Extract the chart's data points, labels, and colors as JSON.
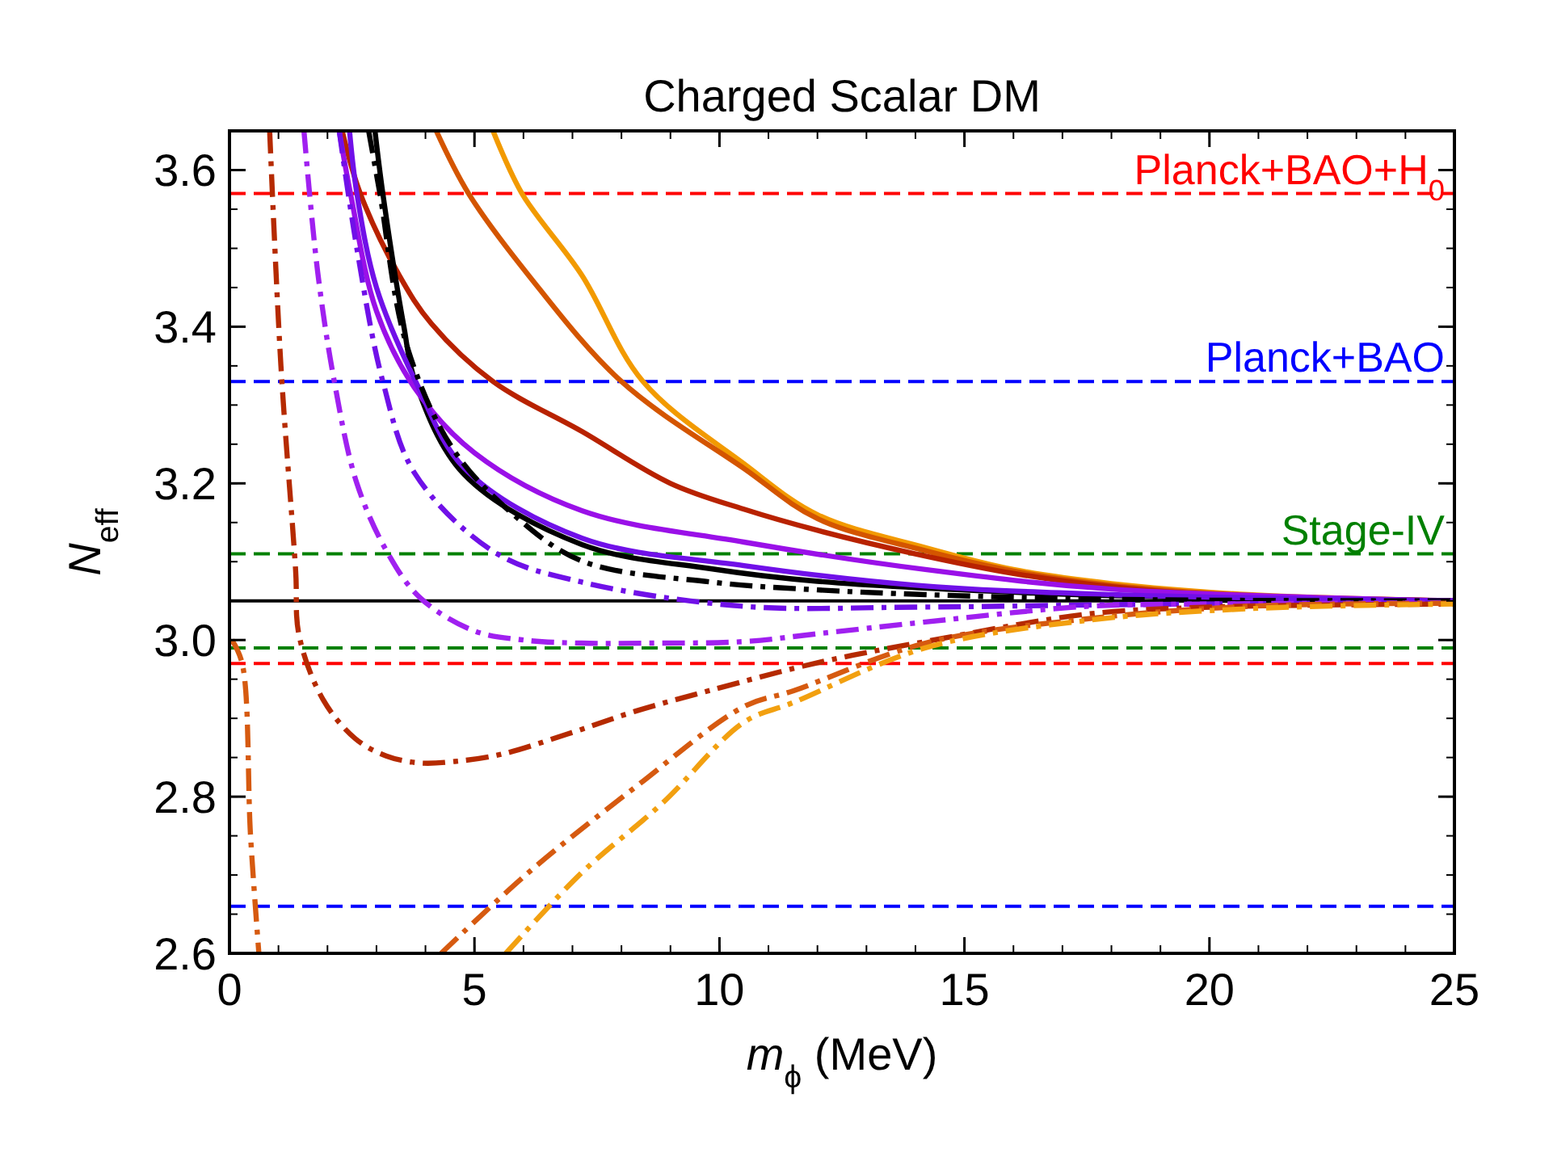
{
  "chart_data": {
    "type": "line",
    "title": "Charged Scalar DM",
    "xlabel": "m$_{ϕ}$ (MeV)",
    "ylabel": "N$_{eff}$",
    "xlim": [
      0,
      25
    ],
    "xticks": [
      0,
      5,
      10,
      15,
      20,
      25
    ],
    "ylim": [
      2.6,
      3.65
    ],
    "yticks": [
      2.6,
      2.8,
      {
        "value": 3,
        "label": "3.0"
      },
      3.2,
      3.4,
      3.6
    ],
    "grid": false,
    "marker": "none",
    "series": [
      {
        "color": "#f29a00",
        "line_style": "solid",
        "x": [
          5.38,
          5.97,
          7.19,
          8.44,
          10.5,
          12,
          14.2,
          16,
          18,
          20.8,
          25
        ],
        "values": [
          3.65,
          3.57,
          3.466,
          3.33,
          3.225,
          3.16,
          3.118,
          3.09,
          3.072,
          3.058,
          3.05
        ]
      },
      {
        "color": "#d45500",
        "line_style": "solid",
        "x": [
          4.22,
          4.88,
          6.1,
          8.0,
          10.5,
          12,
          14.2,
          16,
          18,
          20.8,
          25
        ],
        "values": [
          3.65,
          3.57,
          3.466,
          3.33,
          3.219,
          3.155,
          3.114,
          3.088,
          3.07,
          3.057,
          3.05
        ]
      },
      {
        "color": "#b82200",
        "line_style": "solid",
        "x": [
          2.3,
          2.67,
          3.46,
          4.12,
          5.38,
          7.2,
          9,
          10.5,
          12,
          14,
          16,
          18,
          20,
          25
        ],
        "values": [
          3.65,
          3.57,
          3.466,
          3.404,
          3.33,
          3.266,
          3.2,
          3.167,
          3.14,
          3.11,
          3.085,
          3.068,
          3.058,
          3.05
        ]
      },
      {
        "color": "#000000",
        "line_style": "solid",
        "x": [
          2.97,
          3.13,
          3.56,
          3.79,
          4.78,
          7.19,
          9.83,
          12,
          16.4,
          20,
          25
        ],
        "values": [
          3.65,
          3.57,
          3.4,
          3.33,
          3.212,
          3.122,
          3.091,
          3.075,
          3.06,
          3.054,
          3.05
        ]
      },
      {
        "color": "#9a10e8",
        "line_style": "solid",
        "x": [
          2.24,
          2.47,
          3.0,
          3.8,
          5.0,
          7.2,
          10.5,
          14.2,
          18,
          25
        ],
        "values": [
          3.65,
          3.57,
          3.42,
          3.32,
          3.239,
          3.165,
          3.125,
          3.09,
          3.065,
          3.05
        ]
      },
      {
        "color": "#7010e8",
        "line_style": "solid",
        "x": [
          2.45,
          2.6,
          3.0,
          3.8,
          4.8,
          7.2,
          10.5,
          14,
          18,
          25
        ],
        "values": [
          3.65,
          3.57,
          3.45,
          3.33,
          3.219,
          3.13,
          3.095,
          3.07,
          3.058,
          3.05
        ]
      },
      {
        "color": "#000000",
        "line_style": "dashdot",
        "x": [
          2.84,
          3.07,
          3.6,
          4.55,
          5.8,
          7.19,
          9.83,
          12,
          14.2,
          18,
          25
        ],
        "values": [
          3.65,
          3.57,
          3.38,
          3.245,
          3.16,
          3.101,
          3.074,
          3.064,
          3.058,
          3.052,
          3.05
        ]
      },
      {
        "color": "#7010e8",
        "line_style": "dashdot",
        "x": [
          2.24,
          2.6,
          3.13,
          3.79,
          5.44,
          7.19,
          10.5,
          14,
          18,
          25
        ],
        "values": [
          3.65,
          3.5,
          3.33,
          3.212,
          3.111,
          3.074,
          3.043,
          3.042,
          3.045,
          3.048
        ]
      },
      {
        "color": "#a020f0",
        "line_style": "dashdot",
        "x": [
          1.52,
          1.8,
          2.14,
          2.6,
          3.23,
          3.89,
          4.98,
          6,
          7.19,
          8.5,
          10.5,
          12,
          14.2,
          17.5,
          20,
          25
        ],
        "values": [
          3.65,
          3.47,
          3.33,
          3.2,
          3.111,
          3.054,
          3.012,
          3.0,
          2.996,
          2.996,
          2.998,
          3.008,
          3.023,
          3.043,
          3.046,
          3.047
        ]
      },
      {
        "color": "#b52a00",
        "line_style": "dashdot",
        "x": [
          0.82,
          1.05,
          1.35,
          1.42,
          1.91,
          2.57,
          3.2,
          3.89,
          4.6,
          5.54,
          6.9,
          8.28,
          9.83,
          12,
          14.2,
          17.5,
          20,
          25
        ],
        "values": [
          3.65,
          3.35,
          3.089,
          3.006,
          2.924,
          2.874,
          2.852,
          2.843,
          2.845,
          2.854,
          2.88,
          2.909,
          2.936,
          2.971,
          2.998,
          3.033,
          3.042,
          3.046
        ]
      },
      {
        "color": "#d65a10",
        "line_style": "dashdot",
        "x": [
          0.05,
          0.26,
          0.43,
          0.6,
          2.5,
          4.32,
          6.1,
          8.28,
          10.5,
          11.5,
          14.2,
          17.5,
          20.8,
          25
        ],
        "values": [
          3.0,
          2.97,
          2.75,
          2.6,
          null,
          2.6,
          2.703,
          2.812,
          2.915,
          2.935,
          2.996,
          3.027,
          3.043,
          3.047
        ]
      },
      {
        "color": "#f2a010",
        "line_style": "dashdot",
        "x": [
          5.64,
          7.19,
          8.84,
          10.5,
          11.5,
          14.2,
          17.5,
          20.8,
          25
        ],
        "values": [
          2.6,
          2.703,
          2.792,
          2.895,
          2.92,
          2.99,
          3.025,
          3.04,
          3.046
        ]
      }
    ],
    "ref_lines": [
      {
        "axis": "y",
        "value": 3.57,
        "label": "Planck+BAO+H$_{0}$",
        "color": "#ff0000",
        "line_style": "dashed"
      },
      {
        "axis": "y",
        "value": 3.33,
        "label": "Planck+BAO",
        "color": "#0000ff",
        "line_style": "dashed"
      },
      {
        "axis": "y",
        "value": 3.11,
        "label": "Stage-IV",
        "color": "#008000",
        "line_style": "dashed"
      },
      {
        "axis": "y",
        "value": 3.05,
        "color": "#000000",
        "line_style": "solid"
      },
      {
        "axis": "y",
        "value": 2.99,
        "color": "#008000",
        "line_style": "dashed"
      },
      {
        "axis": "y",
        "value": 2.97,
        "color": "#ff0000",
        "line_style": "dashed"
      },
      {
        "axis": "y",
        "value": 2.66,
        "color": "#0000ff",
        "line_style": "dashed"
      }
    ]
  }
}
